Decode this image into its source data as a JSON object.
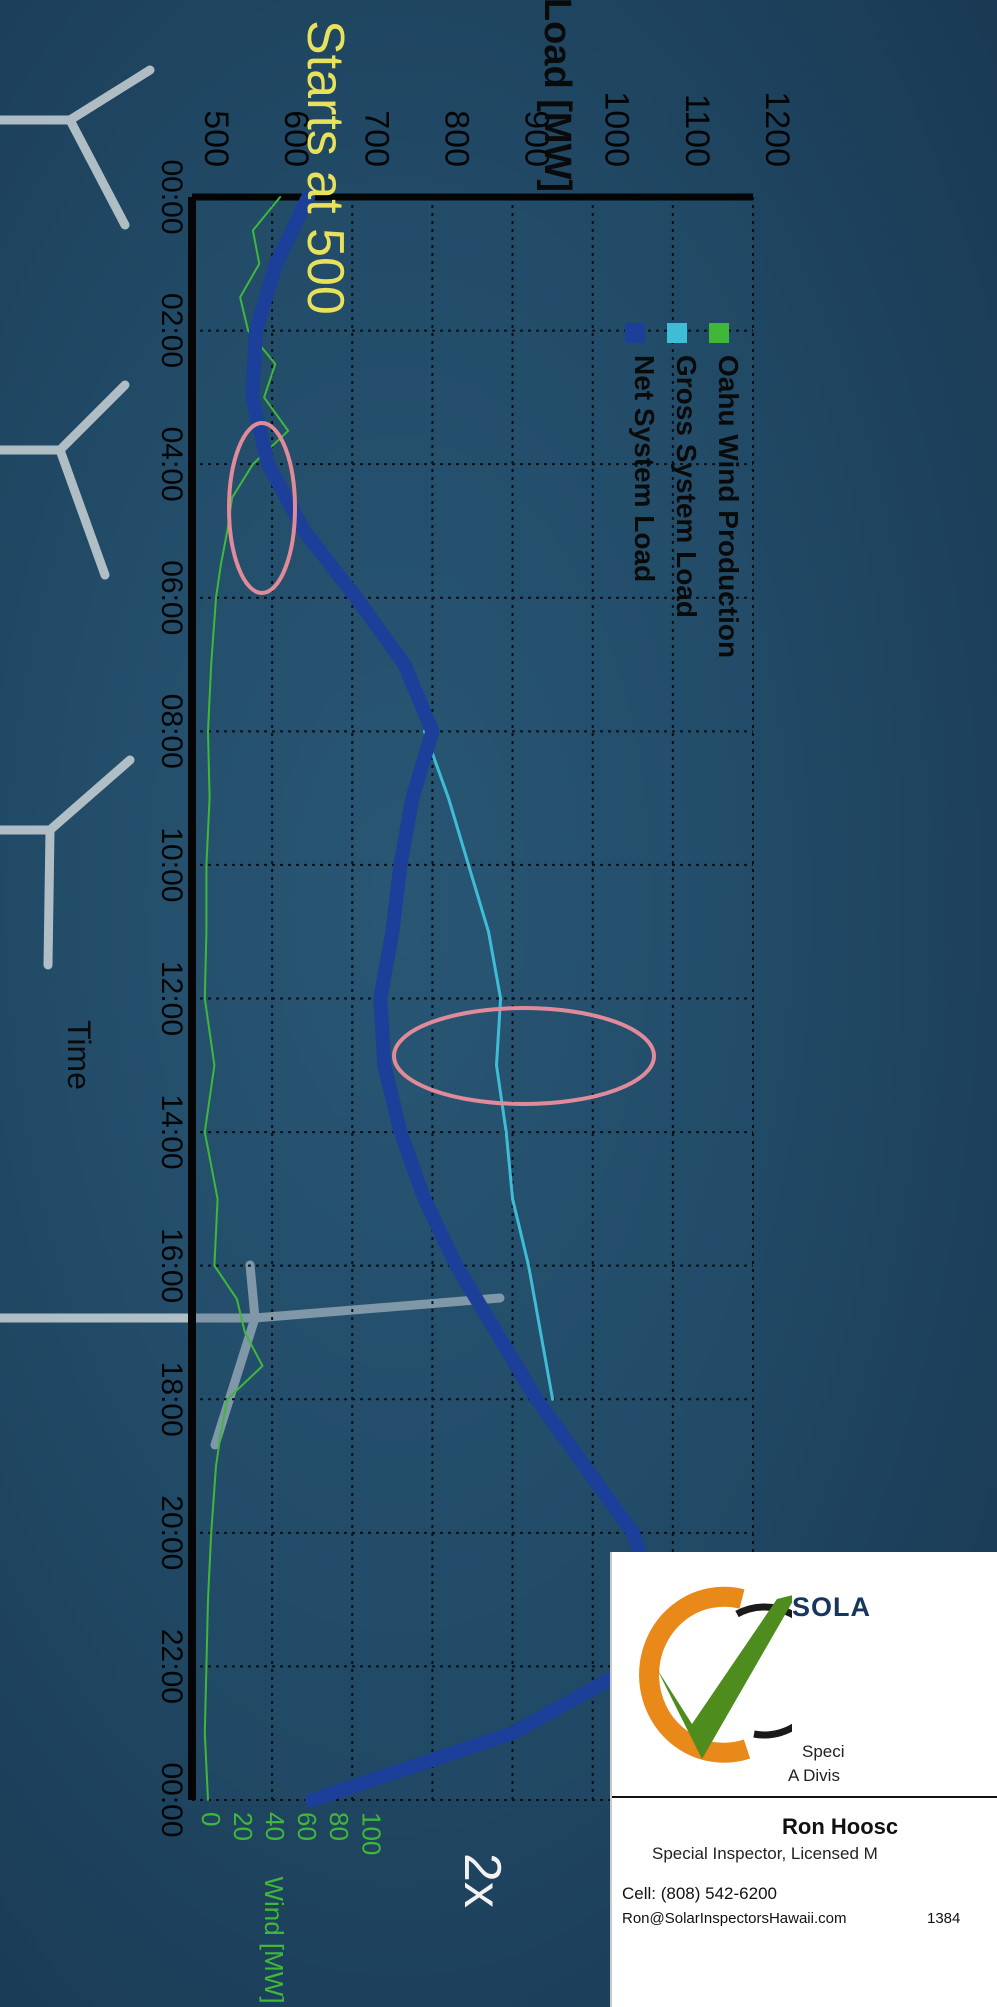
{
  "chart_data": {
    "type": "line",
    "xlabel": "Time",
    "ylabel": "Load [MW]",
    "y2label": "Wind [MW]",
    "ylim": [
      500,
      1200
    ],
    "y2lim": [
      0,
      100
    ],
    "x_ticks": [
      "00:00",
      "02:00",
      "04:00",
      "06:00",
      "08:00",
      "10:00",
      "12:00",
      "14:00",
      "16:00",
      "18:00",
      "20:00",
      "22:00",
      "00:00"
    ],
    "y_ticks": [
      500,
      600,
      700,
      800,
      900,
      1000,
      1100,
      1200
    ],
    "y2_ticks": [
      0,
      20,
      40,
      60,
      80,
      100
    ],
    "grid": true,
    "legend_position": "top-left",
    "series": [
      {
        "name": "Oahu Wind Production",
        "axis": "y2",
        "color": "#3fb83a",
        "x": [
          0,
          0.5,
          1,
          1.5,
          2,
          2.5,
          3,
          3.5,
          4,
          4.5,
          5,
          5.5,
          6,
          7,
          8,
          9,
          10,
          11,
          12,
          13,
          14,
          15,
          16,
          16.5,
          17,
          17.5,
          18,
          18.5,
          19,
          20,
          21,
          22,
          23,
          24
        ],
        "y": [
          55,
          38,
          42,
          30,
          35,
          52,
          45,
          60,
          38,
          25,
          22,
          18,
          15,
          12,
          10,
          11,
          9,
          9,
          8,
          14,
          8,
          16,
          14,
          28,
          33,
          44,
          22,
          18,
          15,
          12,
          10,
          9,
          8,
          10
        ]
      },
      {
        "name": "Gross System Load",
        "axis": "y",
        "color": "#3fbcd6",
        "x": [
          8,
          9,
          10,
          11,
          12,
          13,
          14,
          15,
          16,
          17,
          18
        ],
        "y": [
          790,
          820,
          845,
          870,
          885,
          880,
          892,
          900,
          920,
          935,
          950
        ]
      },
      {
        "name": "Net System Load",
        "axis": "y",
        "color": "#1c3f9a",
        "x": [
          0,
          1,
          2,
          3,
          4,
          5,
          6,
          7,
          8,
          9,
          10,
          11,
          12,
          13,
          14,
          15,
          16,
          17,
          18,
          19,
          20,
          21,
          22,
          23,
          24
        ],
        "y": [
          645,
          605,
          580,
          575,
          595,
          640,
          705,
          765,
          800,
          775,
          760,
          750,
          735,
          740,
          760,
          790,
          830,
          880,
          930,
          990,
          1050,
          1080,
          1050,
          900,
          650
        ]
      }
    ],
    "annotations": [
      "Starts at 500",
      "2x"
    ]
  },
  "card": {
    "brand": "SOLA",
    "sub1": "Speci",
    "sub2": "A Divis",
    "name": "Ron Hoosc",
    "role": "Special Inspector, Licensed M",
    "cell": "Cell: (808) 542-6200",
    "email": "Ron@SolarInspectorsHawaii.com",
    "addr": "1384"
  }
}
